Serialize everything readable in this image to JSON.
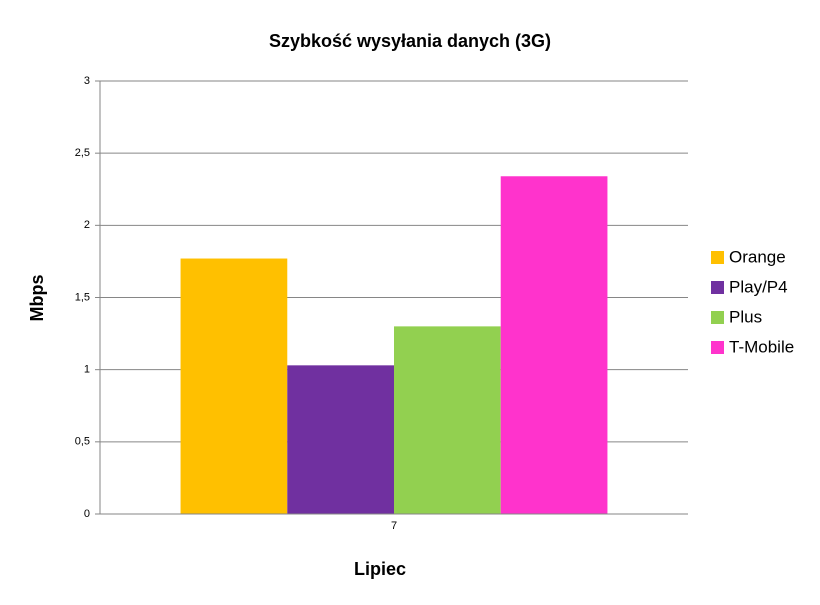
{
  "chart_data": {
    "type": "bar",
    "title": "Szybkość wysyłania danych (3G)",
    "x_label": "Lipiec",
    "y_label": "Mbps",
    "categories": [
      "7"
    ],
    "series": [
      {
        "name": "Orange",
        "color": "#ffc000",
        "values": [
          1.77
        ]
      },
      {
        "name": "Play/P4",
        "color": "#7030a0",
        "values": [
          1.03
        ]
      },
      {
        "name": "Plus",
        "color": "#92d050",
        "values": [
          1.3
        ]
      },
      {
        "name": "T-Mobile",
        "color": "#ff33cc",
        "values": [
          2.34
        ]
      }
    ],
    "ylim": [
      0,
      3
    ],
    "yticks": [
      0,
      {
        "value": 0.5,
        "label": "0,5"
      },
      1,
      {
        "value": 1.5,
        "label": "1,5"
      },
      2,
      {
        "value": 2.5,
        "label": "2,5"
      },
      3
    ],
    "grid": true,
    "legend": "right"
  }
}
